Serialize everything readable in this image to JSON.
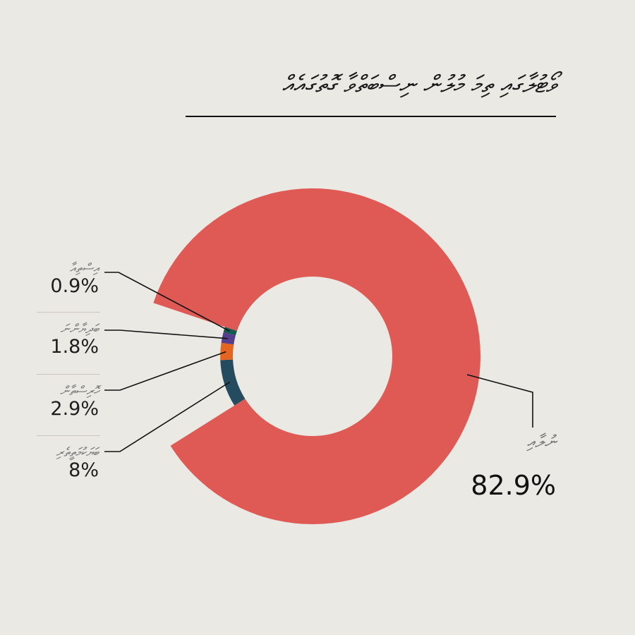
{
  "title": "ވޯޓުލާގައި ތިމަ މުލުން ނިސްބަތްވާ ގޮތުގައެއް",
  "chart_data": {
    "type": "pie",
    "donut": true,
    "categories": [
      "ނުލާއި",
      "ބަޔަކުމަތީތެރި",
      "ހޮރިސްތާން",
      "ބަދިޔާންނަ",
      "އިސްތިއާ"
    ],
    "values": [
      82.9,
      8,
      2.9,
      1.8,
      0.9
    ],
    "labels": [
      "82.9%",
      "8%",
      "2.9%",
      "1.8%",
      "0.9%"
    ],
    "colors": [
      "#e05a55",
      "#244b5e",
      "#e4651f",
      "#553f8d",
      "#145a4f"
    ],
    "legend": "left"
  }
}
